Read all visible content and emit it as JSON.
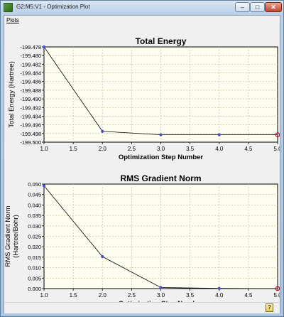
{
  "window": {
    "title": "G2:M5:V1 - Optimization Plot",
    "icon": "gaussview-app-icon",
    "minimize_glyph": "–",
    "maximize_glyph": "□",
    "close_glyph": "✕"
  },
  "menu": {
    "items": [
      {
        "label": "Plots"
      }
    ]
  },
  "status": {
    "help_icon": "help-icon",
    "help_glyph": "?"
  },
  "colors": {
    "plot_bg": "#fefef0",
    "grid": "#c8c8a0",
    "line": "#000000",
    "point": "#4a4ad0",
    "last_point": "#c01010"
  },
  "chart_data": [
    {
      "type": "line",
      "title": "Total Energy",
      "xlabel": "Optimization Step Number",
      "ylabel": "Total Energy (Hartree)",
      "xlim": [
        1.0,
        5.0
      ],
      "ylim": [
        -199.5,
        -199.478
      ],
      "x_ticks": [
        "1.0",
        "1.5",
        "2.0",
        "2.5",
        "3.0",
        "3.5",
        "4.0",
        "4.5",
        "5.0"
      ],
      "y_ticks": [
        "-199.478",
        "-199.480",
        "-199.482",
        "-199.484",
        "-199.486",
        "-199.488",
        "-199.490",
        "-199.492",
        "-199.494",
        "-199.496",
        "-199.498",
        "-199.500"
      ],
      "x_tick_values": [
        1.0,
        1.5,
        2.0,
        2.5,
        3.0,
        3.5,
        4.0,
        4.5,
        5.0
      ],
      "y_tick_values": [
        -199.478,
        -199.48,
        -199.482,
        -199.484,
        -199.486,
        -199.488,
        -199.49,
        -199.492,
        -199.494,
        -199.496,
        -199.498,
        -199.5
      ],
      "grid": true,
      "x": [
        1,
        2,
        3,
        4,
        5
      ],
      "y": [
        -199.478,
        -199.4975,
        -199.4983,
        -199.4983,
        -199.4983
      ]
    },
    {
      "type": "line",
      "title": "RMS Gradient Norm",
      "xlabel": "Optimization Step Number",
      "ylabel_lines": [
        "RMS Gradient Norm",
        "(Hartree/Bohr)"
      ],
      "xlim": [
        1.0,
        5.0
      ],
      "ylim": [
        0.0,
        0.05
      ],
      "x_ticks": [
        "1.0",
        "1.5",
        "2.0",
        "2.5",
        "3.0",
        "3.5",
        "4.0",
        "4.5",
        "5.0"
      ],
      "y_ticks": [
        "0.050",
        "0.045",
        "0.040",
        "0.035",
        "0.030",
        "0.025",
        "0.020",
        "0.015",
        "0.010",
        "0.005",
        "0.000"
      ],
      "x_tick_values": [
        1.0,
        1.5,
        2.0,
        2.5,
        3.0,
        3.5,
        4.0,
        4.5,
        5.0
      ],
      "y_tick_values": [
        0.05,
        0.045,
        0.04,
        0.035,
        0.03,
        0.025,
        0.02,
        0.015,
        0.01,
        0.005,
        0.0
      ],
      "grid": true,
      "x": [
        1,
        2,
        3,
        4,
        5
      ],
      "y": [
        0.0492,
        0.0153,
        0.0005,
        0.0001,
        0.0
      ]
    }
  ]
}
